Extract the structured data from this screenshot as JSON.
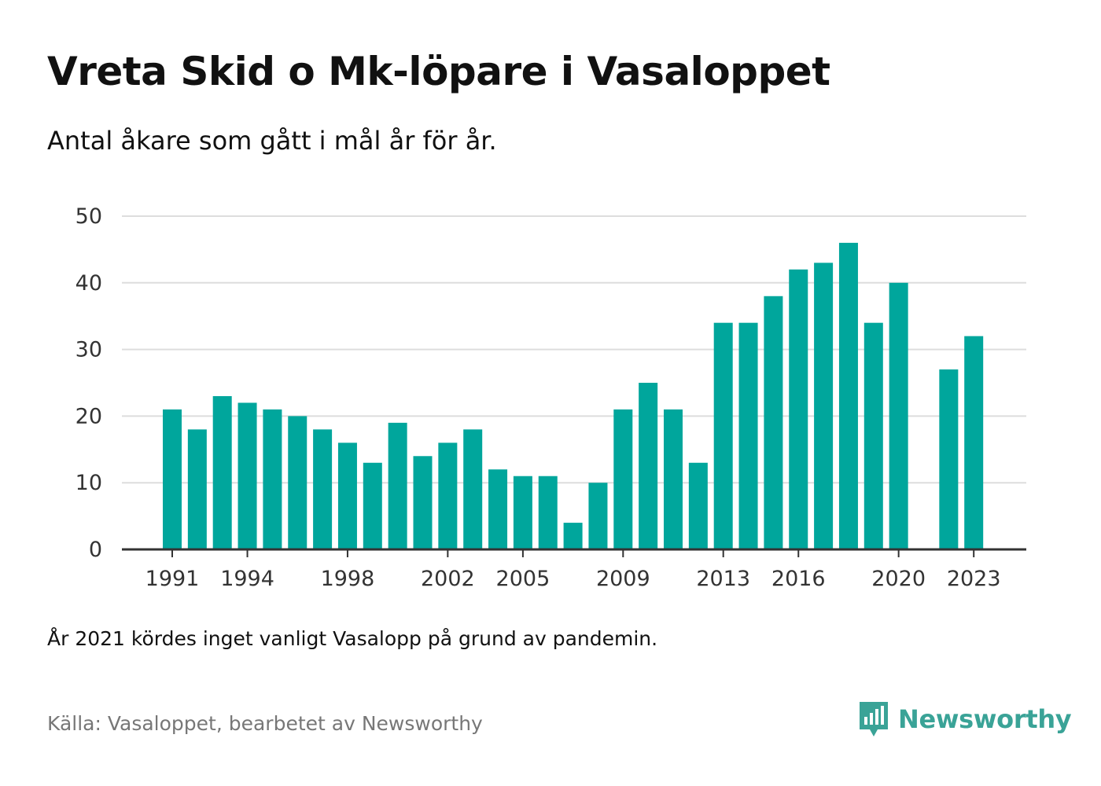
{
  "title": "Vreta Skid o Mk-löpare i Vasaloppet",
  "subtitle": "Antal åkare som gått i mål år för år.",
  "note": "År 2021 kördes inget vanligt Vasalopp på grund av pandemin.",
  "source": "Källa: Vasaloppet, bearbetet av Newsworthy",
  "brand": {
    "name": "Newsworthy",
    "icon": "newsworthy-logo-icon",
    "color": "#3aa397"
  },
  "chart_data": {
    "type": "bar",
    "x": [
      1991,
      1992,
      1993,
      1994,
      1995,
      1996,
      1997,
      1998,
      1999,
      2000,
      2001,
      2002,
      2003,
      2004,
      2005,
      2006,
      2007,
      2008,
      2009,
      2010,
      2011,
      2012,
      2013,
      2014,
      2015,
      2016,
      2017,
      2018,
      2019,
      2020,
      2021,
      2022,
      2023
    ],
    "values": [
      21,
      18,
      23,
      22,
      21,
      20,
      18,
      16,
      13,
      19,
      14,
      16,
      18,
      12,
      11,
      11,
      4,
      10,
      21,
      25,
      21,
      13,
      34,
      34,
      38,
      42,
      43,
      46,
      34,
      40,
      null,
      27,
      32
    ],
    "x_tick_labels": [
      "1991",
      "1994",
      "1998",
      "2002",
      "2005",
      "2009",
      "2013",
      "2016",
      "2020",
      "2023"
    ],
    "y_tick_labels": [
      "0",
      "10",
      "20",
      "30",
      "40",
      "50"
    ],
    "ylim": [
      0,
      50
    ],
    "grid": true,
    "bar_color": "#00a69c",
    "grid_color": "#dddddd",
    "axis_color": "#333333"
  }
}
